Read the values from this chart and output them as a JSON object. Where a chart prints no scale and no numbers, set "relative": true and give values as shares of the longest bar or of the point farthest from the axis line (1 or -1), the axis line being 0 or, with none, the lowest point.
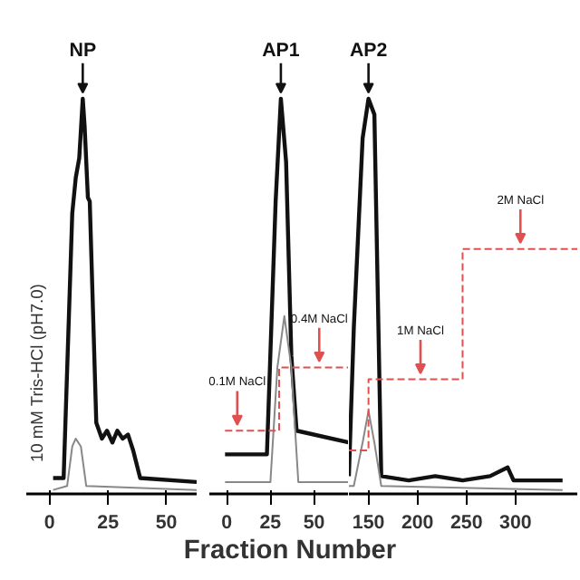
{
  "chart_data": [
    {
      "type": "line",
      "relative": true,
      "xlim": [
        -10,
        63
      ],
      "xticks": [
        0,
        25,
        50
      ],
      "series": [
        {
          "color": "#111111",
          "x": [
            1.5,
            6,
            9.7,
            11.2,
            12.7,
            14.2,
            15,
            16.4,
            17.2,
            20,
            22.4,
            24.6,
            26.9,
            29,
            31.3,
            33.6,
            35.8,
            38.8,
            63
          ],
          "values": [
            0.04,
            0.04,
            0.71,
            0.8,
            0.85,
            1.0,
            0.93,
            0.75,
            0.74,
            0.18,
            0.14,
            0.16,
            0.13,
            0.16,
            0.14,
            0.15,
            0.11,
            0.04,
            0.03
          ]
        },
        {
          "color": "#888888",
          "x": [
            1.5,
            7.5,
            9.7,
            11.2,
            13.4,
            15.7,
            63
          ],
          "values": [
            0.01,
            0.02,
            0.12,
            0.14,
            0.12,
            0.02,
            0.01
          ]
        }
      ],
      "annotations": [
        {
          "text": "NP",
          "x": 14.2,
          "y": 1.0
        },
        "10 mM Tris-HCl (pH7.0)"
      ]
    },
    {
      "type": "line",
      "relative": true,
      "xlabel": "Fraction Number",
      "xlim": [
        -10,
        70
      ],
      "xticks": [
        0,
        25,
        50
      ],
      "series": [
        {
          "color": "#111111",
          "x": [
            -1,
            23,
            28,
            31,
            34,
            37,
            40,
            70
          ],
          "values": [
            0.1,
            0.1,
            0.74,
            1.0,
            0.84,
            0.35,
            0.16,
            0.13
          ]
        },
        {
          "color": "#888888",
          "x": [
            -1,
            25,
            29,
            33,
            37,
            41,
            70
          ],
          "values": [
            0.03,
            0.03,
            0.32,
            0.45,
            0.32,
            0.03,
            0.03
          ]
        },
        {
          "color": "#e05050",
          "line_style": "dashed",
          "x": [
            -1,
            30,
            30,
            70
          ],
          "values": [
            0.16,
            0.16,
            0.32,
            0.32
          ]
        }
      ],
      "annotations": [
        {
          "text": "0.1M NaCl",
          "x": 6,
          "y": 0.16
        },
        {
          "text": "0.4M NaCl",
          "x": 53,
          "y": 0.32
        },
        {
          "text": "AP1",
          "x": 31,
          "y": 1.0
        }
      ]
    },
    {
      "type": "line",
      "relative": true,
      "xlim": [
        130,
        363
      ],
      "xticks": [
        150,
        200,
        250,
        300
      ],
      "series": [
        {
          "color": "#111111",
          "x": [
            130,
            135,
            144,
            150,
            156,
            163,
            191,
            218,
            246,
            274,
            292,
            298,
            348
          ],
          "values": [
            0.045,
            0.42,
            0.9,
            1.0,
            0.96,
            0.045,
            0.034,
            0.045,
            0.034,
            0.045,
            0.067,
            0.034,
            0.034
          ]
        },
        {
          "color": "#888888",
          "x": [
            130,
            135,
            144,
            150,
            156,
            163,
            348
          ],
          "values": [
            0.02,
            0.02,
            0.13,
            0.21,
            0.13,
            0.02,
            0.01
          ]
        },
        {
          "color": "#e05050",
          "line_style": "dashed",
          "x": [
            130,
            150,
            150,
            246,
            246,
            363
          ],
          "values": [
            0.11,
            0.11,
            0.29,
            0.29,
            0.62,
            0.62
          ]
        }
      ],
      "annotations": [
        {
          "text": "AP2",
          "x": 150,
          "y": 1.0
        },
        {
          "text": "1M NaCl",
          "x": 203,
          "y": 0.29
        },
        {
          "text": "2M NaCl",
          "x": 305,
          "y": 0.62
        }
      ]
    }
  ]
}
